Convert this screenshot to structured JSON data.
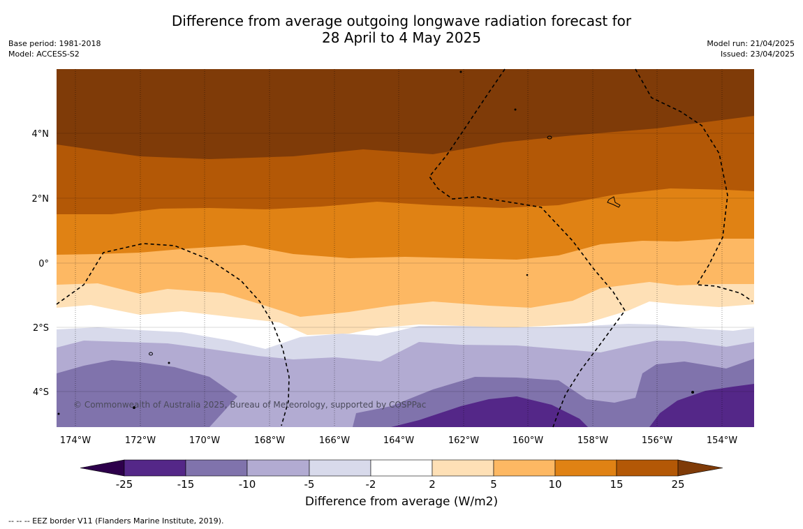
{
  "title": {
    "line1": "Difference from average outgoing longwave radiation forecast for",
    "line2": "28 April to 4 May 2025"
  },
  "meta_left": {
    "base_period": "Base period: 1981-2018",
    "model": "Model: ACCESS-S2"
  },
  "meta_right": {
    "model_run": "Model run: 21/04/2025",
    "issued": "Issued: 23/04/2025"
  },
  "map": {
    "copyright": "© Commonwealth of Australia 2025, Bureau of Meteorology, supported by COSPPac",
    "lat_labels": [
      "4°N",
      "2°N",
      "0°",
      "2°S",
      "4°S"
    ],
    "lon_labels": [
      "174°W",
      "172°W",
      "170°W",
      "168°W",
      "166°W",
      "164°W",
      "162°W",
      "160°W",
      "158°W",
      "156°W",
      "154°W"
    ]
  },
  "colorbar": {
    "title": "Difference from average (W/m2)",
    "ticks": [
      "-25",
      "-15",
      "-10",
      "-5",
      "-2",
      "2",
      "5",
      "10",
      "15",
      "25"
    ],
    "colors": [
      "#2d004b",
      "#542788",
      "#8073ac",
      "#b2abd2",
      "#d8daeb",
      "#ffffff",
      "#fee0b6",
      "#fdb863",
      "#e08214",
      "#b35806",
      "#7f3b08"
    ]
  },
  "footer": "--  --  -- EEZ border V11 (Flanders Marine Institute, 2019)."
}
